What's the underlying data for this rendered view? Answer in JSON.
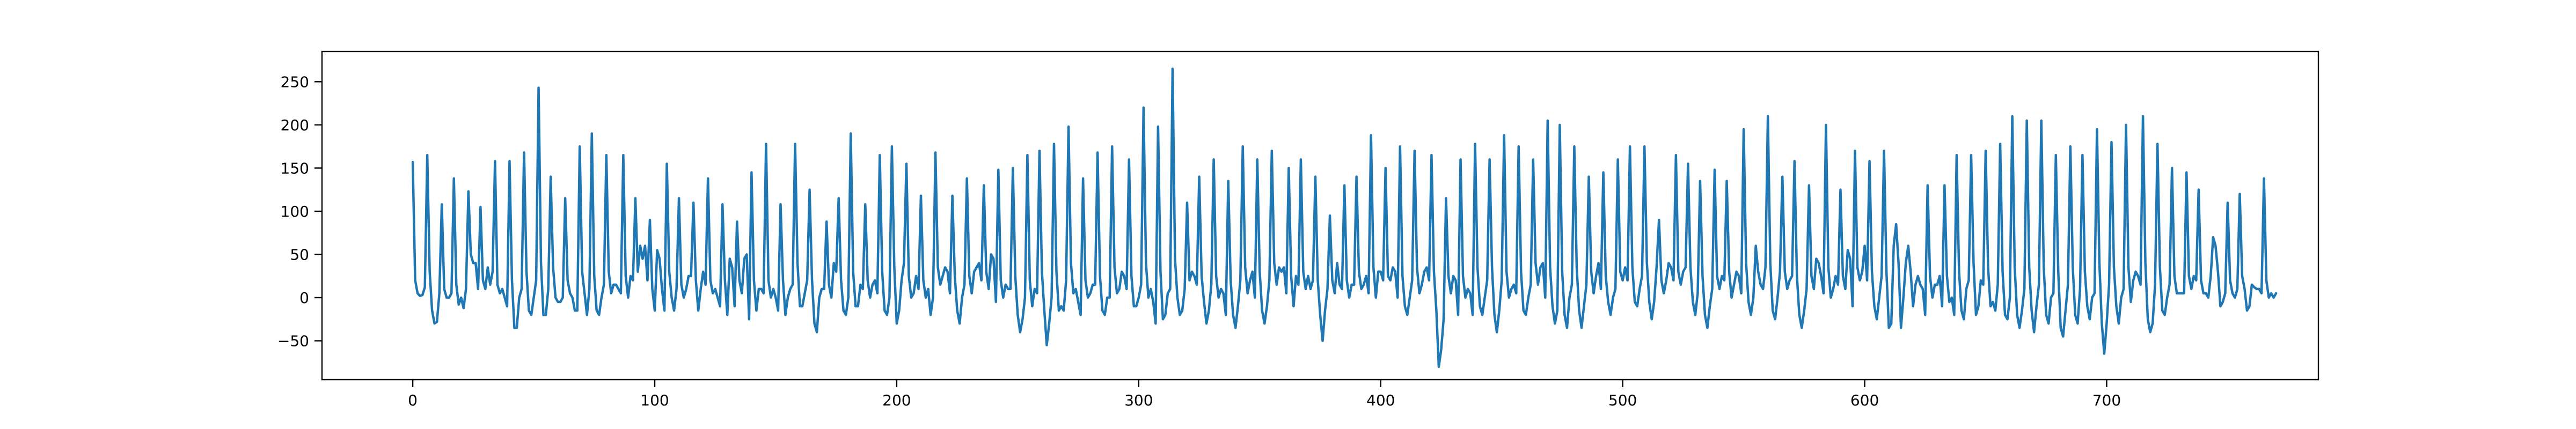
{
  "chart_data": {
    "type": "line",
    "title": "",
    "xlabel": "",
    "ylabel": "",
    "xlim": [
      -37.5,
      787.5
    ],
    "ylim": [
      -95,
      285
    ],
    "grid": false,
    "legend": "none",
    "x_ticks": [
      0,
      100,
      200,
      300,
      400,
      500,
      600,
      700
    ],
    "x_tick_labels": [
      "0",
      "100",
      "200",
      "300",
      "400",
      "500",
      "600",
      "700"
    ],
    "y_ticks": [
      -50,
      0,
      50,
      100,
      150,
      200,
      250
    ],
    "y_tick_labels": [
      "−50",
      "0",
      "50",
      "100",
      "150",
      "200",
      "250"
    ],
    "series": [
      {
        "color": "#1f77b4",
        "x_start": 0,
        "x_step": 1,
        "values": [
          157,
          20,
          5,
          2,
          3,
          12,
          165,
          30,
          -15,
          -30,
          -28,
          5,
          108,
          10,
          0,
          0,
          5,
          138,
          15,
          -8,
          0,
          -12,
          10,
          123,
          50,
          40,
          40,
          10,
          105,
          20,
          10,
          35,
          15,
          30,
          158,
          15,
          5,
          10,
          0,
          -10,
          158,
          20,
          -35,
          -35,
          0,
          10,
          168,
          30,
          -15,
          -20,
          0,
          20,
          243,
          40,
          -20,
          -20,
          10,
          140,
          35,
          0,
          -5,
          -5,
          0,
          115,
          20,
          5,
          0,
          -15,
          -15,
          175,
          30,
          5,
          -20,
          10,
          190,
          25,
          -15,
          -20,
          0,
          15,
          165,
          30,
          5,
          15,
          15,
          10,
          5,
          165,
          25,
          0,
          25,
          20,
          115,
          30,
          60,
          45,
          60,
          20,
          90,
          10,
          -15,
          55,
          45,
          10,
          -15,
          155,
          30,
          0,
          -15,
          10,
          115,
          15,
          0,
          10,
          25,
          25,
          110,
          20,
          -15,
          10,
          30,
          15,
          138,
          20,
          5,
          10,
          0,
          -10,
          108,
          20,
          -20,
          45,
          35,
          -10,
          88,
          20,
          5,
          45,
          50,
          -25,
          145,
          20,
          -15,
          10,
          10,
          5,
          178,
          20,
          0,
          10,
          0,
          -15,
          108,
          20,
          -20,
          0,
          10,
          15,
          178,
          40,
          -10,
          -10,
          5,
          20,
          125,
          20,
          -30,
          -40,
          0,
          10,
          10,
          88,
          15,
          0,
          40,
          30,
          115,
          20,
          -15,
          -20,
          0,
          190,
          30,
          -10,
          -10,
          15,
          10,
          108,
          20,
          0,
          15,
          20,
          5,
          165,
          30,
          -15,
          -20,
          0,
          175,
          35,
          -30,
          -15,
          20,
          40,
          155,
          25,
          0,
          5,
          25,
          10,
          118,
          20,
          0,
          10,
          -20,
          0,
          168,
          35,
          15,
          25,
          35,
          30,
          5,
          118,
          25,
          -15,
          -30,
          0,
          15,
          138,
          25,
          5,
          30,
          35,
          40,
          20,
          130,
          30,
          10,
          50,
          45,
          -5,
          148,
          20,
          0,
          15,
          10,
          10,
          150,
          25,
          -20,
          -40,
          -25,
          0,
          165,
          20,
          -10,
          10,
          5,
          170,
          30,
          -15,
          -55,
          -30,
          0,
          178,
          30,
          -15,
          -10,
          -15,
          20,
          198,
          40,
          5,
          10,
          -5,
          -20,
          138,
          20,
          0,
          5,
          15,
          15,
          168,
          25,
          -15,
          -20,
          0,
          0,
          175,
          35,
          5,
          10,
          30,
          25,
          10,
          160,
          25,
          -10,
          -10,
          0,
          15,
          220,
          40,
          0,
          10,
          -5,
          -30,
          198,
          30,
          -25,
          -20,
          5,
          10,
          265,
          45,
          0,
          -20,
          -15,
          10,
          110,
          20,
          30,
          25,
          15,
          140,
          25,
          -5,
          -30,
          -15,
          15,
          160,
          25,
          0,
          10,
          5,
          -20,
          135,
          20,
          -20,
          -35,
          -10,
          20,
          175,
          35,
          5,
          20,
          30,
          0,
          160,
          30,
          -15,
          -30,
          -10,
          20,
          170,
          40,
          15,
          35,
          30,
          35,
          5,
          150,
          25,
          -10,
          25,
          15,
          160,
          30,
          10,
          25,
          10,
          20,
          140,
          20,
          -20,
          -50,
          -15,
          10,
          95,
          20,
          5,
          40,
          15,
          10,
          130,
          20,
          0,
          15,
          15,
          140,
          30,
          10,
          15,
          25,
          5,
          188,
          35,
          0,
          30,
          30,
          20,
          150,
          25,
          20,
          35,
          30,
          0,
          175,
          25,
          -10,
          -20,
          0,
          20,
          170,
          35,
          5,
          15,
          30,
          35,
          20,
          165,
          30,
          -15,
          -80,
          -60,
          -25,
          115,
          25,
          5,
          25,
          20,
          -20,
          160,
          25,
          0,
          10,
          5,
          -20,
          178,
          35,
          -10,
          -20,
          0,
          20,
          160,
          35,
          -20,
          -40,
          -15,
          20,
          188,
          30,
          0,
          10,
          15,
          5,
          175,
          30,
          -15,
          -20,
          0,
          15,
          160,
          40,
          15,
          35,
          40,
          0,
          205,
          35,
          -10,
          -30,
          -15,
          200,
          30,
          -20,
          -35,
          0,
          15,
          175,
          35,
          -15,
          -35,
          -10,
          15,
          140,
          30,
          5,
          25,
          40,
          10,
          145,
          25,
          -5,
          -20,
          0,
          10,
          160,
          30,
          20,
          35,
          20,
          175,
          35,
          -5,
          -10,
          10,
          25,
          175,
          40,
          -5,
          -25,
          -5,
          35,
          90,
          20,
          5,
          20,
          40,
          35,
          20,
          165,
          30,
          15,
          30,
          35,
          155,
          35,
          -5,
          -20,
          5,
          135,
          25,
          -20,
          -35,
          -10,
          10,
          148,
          25,
          10,
          25,
          20,
          135,
          30,
          0,
          15,
          30,
          25,
          5,
          195,
          40,
          -5,
          -20,
          0,
          60,
          30,
          15,
          10,
          35,
          210,
          40,
          -15,
          -25,
          0,
          30,
          140,
          30,
          10,
          20,
          25,
          158,
          25,
          -20,
          -35,
          -15,
          10,
          130,
          25,
          10,
          45,
          40,
          25,
          5,
          200,
          35,
          0,
          10,
          25,
          15,
          125,
          25,
          10,
          55,
          45,
          -10,
          170,
          35,
          20,
          30,
          60,
          20,
          158,
          30,
          -10,
          -25,
          0,
          25,
          170,
          30,
          -35,
          -30,
          60,
          85,
          40,
          -35,
          0,
          40,
          60,
          30,
          -10,
          15,
          25,
          15,
          10,
          -20,
          130,
          25,
          0,
          15,
          15,
          25,
          -10,
          130,
          25,
          -5,
          0,
          -20,
          165,
          30,
          -15,
          -25,
          10,
          20,
          165,
          40,
          -20,
          -10,
          20,
          15,
          170,
          35,
          -10,
          -5,
          -15,
          15,
          178,
          30,
          -20,
          -25,
          0,
          210,
          35,
          -20,
          -35,
          -15,
          10,
          205,
          35,
          -15,
          -40,
          -10,
          15,
          205,
          35,
          -20,
          -30,
          0,
          5,
          165,
          30,
          -35,
          -45,
          -15,
          15,
          175,
          35,
          -20,
          -30,
          10,
          165,
          30,
          -10,
          -25,
          0,
          5,
          195,
          40,
          -30,
          -65,
          -30,
          15,
          180,
          35,
          -10,
          -30,
          0,
          10,
          200,
          35,
          -5,
          20,
          30,
          25,
          15,
          210,
          40,
          -25,
          -40,
          -30,
          15,
          178,
          35,
          -15,
          -20,
          0,
          15,
          150,
          25,
          5,
          5,
          5,
          5,
          145,
          25,
          10,
          25,
          20,
          125,
          20,
          5,
          5,
          0,
          25,
          70,
          60,
          30,
          -10,
          -5,
          5,
          110,
          20,
          5,
          0,
          10,
          120,
          25,
          10,
          -15,
          -10,
          15,
          12,
          10,
          10,
          5,
          138,
          20,
          0,
          5,
          0,
          5
        ]
      }
    ]
  }
}
